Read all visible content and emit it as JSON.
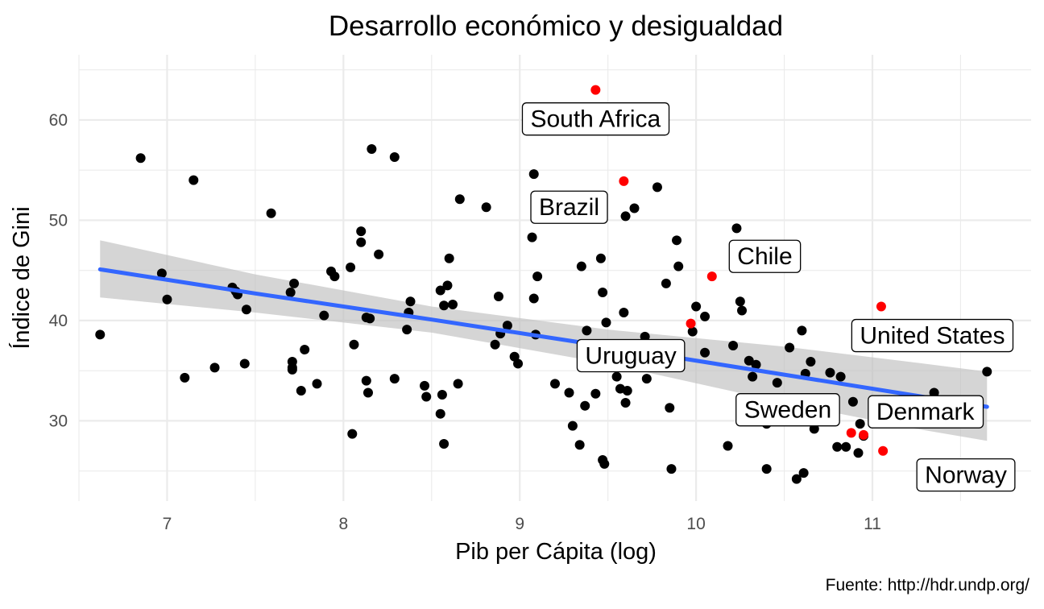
{
  "chart_data": {
    "type": "scatter",
    "title": "Desarrollo económico y desigualdad",
    "xlabel": "Pib per Cápita (log)",
    "ylabel": "Índice de Gini",
    "caption": "Fuente: http://hdr.undp.org/",
    "xlim": [
      6.5,
      11.9
    ],
    "ylim": [
      22,
      66.5
    ],
    "x_ticks": [
      7,
      8,
      9,
      10,
      11
    ],
    "y_ticks": [
      30,
      40,
      50,
      60
    ],
    "grid": true,
    "colors": {
      "points": "#000000",
      "highlight": "#ff0000",
      "trend": "#3366ff",
      "ribbon": "#bfbfbf",
      "grid": "#ebebeb"
    },
    "trend": {
      "x": [
        6.62,
        7.5,
        8.5,
        9.5,
        10.5,
        11.25,
        11.65
      ],
      "y": [
        45.1,
        42.7,
        40.1,
        37.4,
        34.6,
        32.5,
        31.4
      ],
      "lower": [
        42.3,
        40.8,
        38.8,
        35.7,
        31.8,
        29.2,
        28.0
      ],
      "upper": [
        48.0,
        44.6,
        41.4,
        39.1,
        37.4,
        35.8,
        34.9
      ]
    },
    "points": [
      [
        6.62,
        38.6
      ],
      [
        6.85,
        56.2
      ],
      [
        6.97,
        44.7
      ],
      [
        7.0,
        42.1
      ],
      [
        7.1,
        34.3
      ],
      [
        7.15,
        54.0
      ],
      [
        7.27,
        35.3
      ],
      [
        7.37,
        43.3
      ],
      [
        7.39,
        42.9
      ],
      [
        7.4,
        42.6
      ],
      [
        7.44,
        35.7
      ],
      [
        7.45,
        41.1
      ],
      [
        7.59,
        50.7
      ],
      [
        7.7,
        42.8
      ],
      [
        7.71,
        35.9
      ],
      [
        7.71,
        35.3
      ],
      [
        7.71,
        35.1
      ],
      [
        7.72,
        43.7
      ],
      [
        7.76,
        33.0
      ],
      [
        7.78,
        37.1
      ],
      [
        7.85,
        33.7
      ],
      [
        7.89,
        40.5
      ],
      [
        7.93,
        44.9
      ],
      [
        7.95,
        44.4
      ],
      [
        8.04,
        45.3
      ],
      [
        8.05,
        28.7
      ],
      [
        8.06,
        37.6
      ],
      [
        8.1,
        48.9
      ],
      [
        8.1,
        47.8
      ],
      [
        8.13,
        40.3
      ],
      [
        8.13,
        34.0
      ],
      [
        8.14,
        32.8
      ],
      [
        8.15,
        40.2
      ],
      [
        8.16,
        57.1
      ],
      [
        8.2,
        46.6
      ],
      [
        8.29,
        56.3
      ],
      [
        8.29,
        34.2
      ],
      [
        8.36,
        39.1
      ],
      [
        8.37,
        40.8
      ],
      [
        8.38,
        41.9
      ],
      [
        8.46,
        33.5
      ],
      [
        8.47,
        32.4
      ],
      [
        8.55,
        43.0
      ],
      [
        8.55,
        30.7
      ],
      [
        8.56,
        32.6
      ],
      [
        8.57,
        41.5
      ],
      [
        8.57,
        27.7
      ],
      [
        8.59,
        43.5
      ],
      [
        8.6,
        46.2
      ],
      [
        8.62,
        41.6
      ],
      [
        8.65,
        33.7
      ],
      [
        8.66,
        52.1
      ],
      [
        8.81,
        51.3
      ],
      [
        8.86,
        37.6
      ],
      [
        8.88,
        42.4
      ],
      [
        8.89,
        38.7
      ],
      [
        8.93,
        39.5
      ],
      [
        8.97,
        36.4
      ],
      [
        8.99,
        35.7
      ],
      [
        9.07,
        48.3
      ],
      [
        9.08,
        54.6
      ],
      [
        9.08,
        42.2
      ],
      [
        9.09,
        38.6
      ],
      [
        9.1,
        44.4
      ],
      [
        9.2,
        33.7
      ],
      [
        9.28,
        32.8
      ],
      [
        9.3,
        29.5
      ],
      [
        9.34,
        27.6
      ],
      [
        9.35,
        45.4
      ],
      [
        9.37,
        31.5
      ],
      [
        9.38,
        39.0
      ],
      [
        9.43,
        32.7
      ],
      [
        9.46,
        46.2
      ],
      [
        9.47,
        26.1
      ],
      [
        9.47,
        42.8
      ],
      [
        9.48,
        25.7
      ],
      [
        9.49,
        39.8
      ],
      [
        9.55,
        34.4
      ],
      [
        9.57,
        33.2
      ],
      [
        9.59,
        40.8
      ],
      [
        9.6,
        31.8
      ],
      [
        9.6,
        50.4
      ],
      [
        9.61,
        33.0
      ],
      [
        9.65,
        51.2
      ],
      [
        9.71,
        38.4
      ],
      [
        9.72,
        34.2
      ],
      [
        9.78,
        53.3
      ],
      [
        9.83,
        43.7
      ],
      [
        9.85,
        31.3
      ],
      [
        9.86,
        25.2
      ],
      [
        9.89,
        48.0
      ],
      [
        9.9,
        45.4
      ],
      [
        9.98,
        38.9
      ],
      [
        10.0,
        41.4
      ],
      [
        10.05,
        40.4
      ],
      [
        10.05,
        36.8
      ],
      [
        10.18,
        27.5
      ],
      [
        10.21,
        37.5
      ],
      [
        10.23,
        49.2
      ],
      [
        10.25,
        41.9
      ],
      [
        10.26,
        41.0
      ],
      [
        10.3,
        36.0
      ],
      [
        10.32,
        34.4
      ],
      [
        10.34,
        35.6
      ],
      [
        10.4,
        29.7
      ],
      [
        10.4,
        25.2
      ],
      [
        10.46,
        33.8
      ],
      [
        10.53,
        37.3
      ],
      [
        10.57,
        24.2
      ],
      [
        10.6,
        39.0
      ],
      [
        10.61,
        24.8
      ],
      [
        10.62,
        34.7
      ],
      [
        10.65,
        35.9
      ],
      [
        10.67,
        29.2
      ],
      [
        10.76,
        34.8
      ],
      [
        10.8,
        27.4
      ],
      [
        10.82,
        34.4
      ],
      [
        10.85,
        27.4
      ],
      [
        10.89,
        31.9
      ],
      [
        10.92,
        26.8
      ],
      [
        10.93,
        29.7
      ],
      [
        10.95,
        28.5
      ],
      [
        11.35,
        32.8
      ],
      [
        11.65,
        34.9
      ]
    ],
    "highlighted": [
      [
        9.43,
        63.0
      ],
      [
        9.59,
        53.9
      ],
      [
        10.09,
        44.4
      ],
      [
        9.97,
        39.7
      ],
      [
        11.05,
        41.4
      ],
      [
        10.88,
        28.8
      ],
      [
        10.95,
        28.6
      ],
      [
        11.06,
        27.0
      ]
    ],
    "labels": [
      {
        "text": "South Africa",
        "x": 9.43,
        "y": 60.1
      },
      {
        "text": "Brazil",
        "x": 9.28,
        "y": 51.3
      },
      {
        "text": "Chile",
        "x": 10.39,
        "y": 46.4
      },
      {
        "text": "United States",
        "x": 11.34,
        "y": 38.5
      },
      {
        "text": "Uruguay",
        "x": 9.63,
        "y": 36.5
      },
      {
        "text": "Sweden",
        "x": 10.52,
        "y": 31.1
      },
      {
        "text": "Denmark",
        "x": 11.3,
        "y": 30.9
      },
      {
        "text": "Norway",
        "x": 11.53,
        "y": 24.6
      }
    ]
  }
}
